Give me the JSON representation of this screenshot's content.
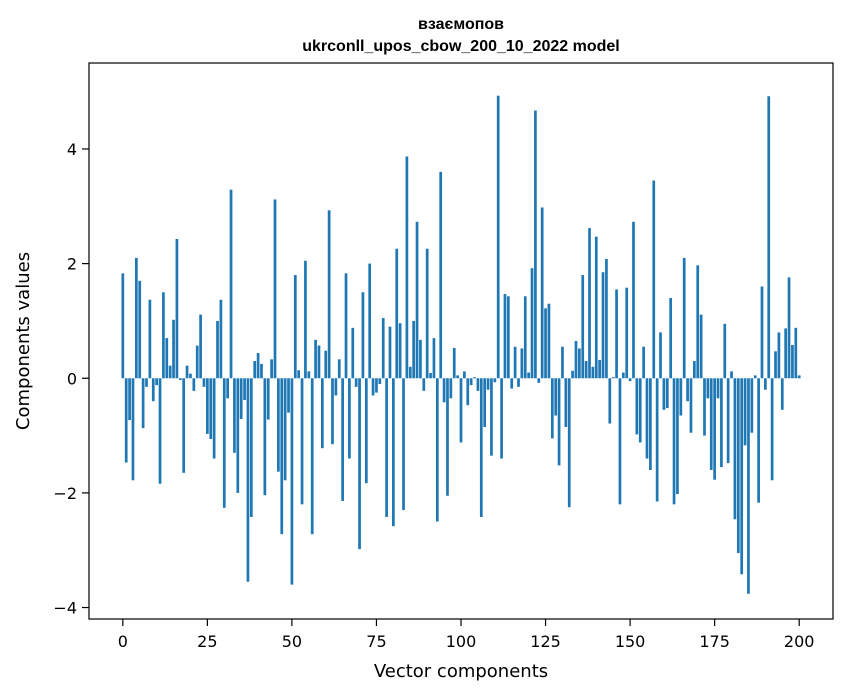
{
  "chart_data": {
    "type": "bar",
    "title": "взаємопов",
    "subtitle": "ukrconll_upos_cbow_200_10_2022 model",
    "xlabel": "Vector components",
    "ylabel": "Components values",
    "xlim": [
      -10,
      210
    ],
    "ylim": [
      -4.2,
      5.5
    ],
    "xticks": [
      0,
      25,
      50,
      75,
      100,
      125,
      150,
      175,
      200
    ],
    "yticks": [
      -4,
      -2,
      0,
      2,
      4
    ],
    "bar_color": "#1f77b4",
    "grid": false,
    "values": [
      1.83,
      -1.47,
      -0.73,
      -1.78,
      2.1,
      1.7,
      -0.87,
      -0.15,
      1.37,
      -0.4,
      -0.12,
      -1.84,
      1.5,
      0.7,
      0.22,
      1.02,
      2.43,
      -0.03,
      -1.65,
      0.22,
      0.08,
      -0.22,
      0.57,
      1.11,
      -0.15,
      -0.97,
      -1.06,
      -1.4,
      1.0,
      1.37,
      -2.26,
      -0.35,
      3.29,
      -1.3,
      -2.0,
      -0.71,
      -0.38,
      -3.55,
      -2.42,
      0.3,
      0.44,
      0.25,
      -2.04,
      -0.72,
      0.33,
      3.12,
      -1.63,
      -2.72,
      -1.78,
      -0.6,
      -3.6,
      1.8,
      0.14,
      -2.2,
      2.05,
      0.12,
      -2.72,
      0.67,
      0.57,
      -1.22,
      0.48,
      2.93,
      -1.15,
      -0.3,
      0.33,
      -2.14,
      1.83,
      -1.4,
      0.88,
      -0.15,
      -2.98,
      1.5,
      -1.83,
      2.0,
      -0.3,
      -0.25,
      -0.1,
      1.05,
      -2.42,
      0.9,
      -2.58,
      2.26,
      0.96,
      -2.3,
      3.87,
      0.2,
      1.0,
      2.73,
      0.67,
      -0.22,
      2.26,
      0.09,
      0.7,
      -2.5,
      3.6,
      -0.42,
      -2.05,
      -0.35,
      0.53,
      0.05,
      -1.12,
      0.12,
      -0.47,
      -0.12,
      0.02,
      -0.22,
      -2.42,
      -0.85,
      -0.2,
      -1.35,
      -0.07,
      4.93,
      -1.4,
      1.47,
      1.43,
      -0.18,
      0.55,
      -0.15,
      0.52,
      1.43,
      0.1,
      1.92,
      4.67,
      -0.08,
      2.98,
      1.22,
      1.3,
      -1.05,
      -0.65,
      -1.52,
      0.55,
      -0.85,
      -2.25,
      0.13,
      0.65,
      0.52,
      1.8,
      0.3,
      2.62,
      0.2,
      2.47,
      0.32,
      1.85,
      2.08,
      -0.79,
      0.02,
      1.55,
      -2.2,
      0.1,
      1.58,
      -0.05,
      2.73,
      -0.98,
      -1.12,
      0.55,
      -1.4,
      -1.6,
      3.45,
      -2.15,
      0.8,
      -0.55,
      -0.52,
      1.4,
      -2.2,
      -2.02,
      -0.65,
      2.1,
      -0.4,
      -0.95,
      0.3,
      1.97,
      1.11,
      -1.0,
      -0.35,
      -1.6,
      -1.77,
      -0.35,
      -1.55,
      0.95,
      -1.48,
      0.12,
      -2.46,
      -3.05,
      -3.42,
      -1.17,
      -3.76,
      -0.95,
      0.05,
      -2.17,
      1.6,
      -0.2,
      4.92,
      -1.78,
      0.47,
      0.8,
      -0.55,
      0.87,
      1.76,
      0.58,
      0.88,
      0.05
    ]
  }
}
